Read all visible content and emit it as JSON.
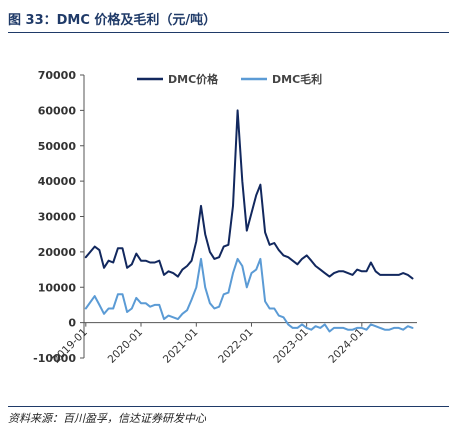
{
  "figure": {
    "title": "图 33：DMC 价格及毛利（元/吨）",
    "source": "资料来源：百川盈孚，信达证券研发中心"
  },
  "colors": {
    "price": "#12285e",
    "margin": "#5b9bd5",
    "axis": "#555555"
  },
  "chart_data": {
    "type": "line",
    "title": "",
    "xlabel": "",
    "ylabel": "",
    "ylim": [
      -10000,
      70000
    ],
    "yticks": [
      -10000,
      0,
      10000,
      20000,
      30000,
      40000,
      50000,
      60000,
      70000
    ],
    "ytick_labels": [
      "-10000",
      "0",
      "10000",
      "20000",
      "30000",
      "40000",
      "50000",
      "60000",
      "70000"
    ],
    "xlim": [
      "2018-12-20",
      "2024-12-31"
    ],
    "xticks": [
      "2019-01",
      "2020-01",
      "2021-01",
      "2022-01",
      "2023-01",
      "2024-01"
    ],
    "xtick_labels": [
      "2019-01",
      "2020-01",
      "2021-01",
      "2022-01",
      "2023-01",
      "2024-01"
    ],
    "legend": {
      "position": "top",
      "entries": [
        "DMC价格",
        "DMC毛利"
      ]
    },
    "grid": false,
    "series": [
      {
        "name": "DMC价格",
        "x": [
          "2019-01",
          "2019-03",
          "2019-04",
          "2019-05",
          "2019-06",
          "2019-07",
          "2019-08",
          "2019-09",
          "2019-10",
          "2019-11",
          "2019-12",
          "2020-01",
          "2020-02",
          "2020-03",
          "2020-04",
          "2020-05",
          "2020-06",
          "2020-07",
          "2020-08",
          "2020-09",
          "2020-10",
          "2020-11",
          "2020-12",
          "2021-01",
          "2021-02",
          "2021-03",
          "2021-04",
          "2021-05",
          "2021-06",
          "2021-07",
          "2021-08",
          "2021-09",
          "2021-10",
          "2021-11",
          "2021-12",
          "2022-01",
          "2022-02",
          "2022-03",
          "2022-04",
          "2022-05",
          "2022-06",
          "2022-07",
          "2022-08",
          "2022-09",
          "2022-10",
          "2022-11",
          "2022-12",
          "2023-01",
          "2023-02",
          "2023-03",
          "2023-04",
          "2023-05",
          "2023-06",
          "2023-07",
          "2023-08",
          "2023-09",
          "2023-10",
          "2023-11",
          "2023-12",
          "2024-01",
          "2024-02",
          "2024-03",
          "2024-04",
          "2024-05",
          "2024-06",
          "2024-07",
          "2024-08",
          "2024-09",
          "2024-10",
          "2024-11",
          "2024-12"
        ],
        "y": [
          18500,
          21500,
          20500,
          15500,
          17500,
          17000,
          21000,
          21000,
          15500,
          16500,
          19500,
          17500,
          17500,
          17000,
          17000,
          17500,
          13500,
          14500,
          14000,
          13000,
          15000,
          16000,
          17500,
          23000,
          33000,
          25000,
          20000,
          18000,
          18500,
          21500,
          22000,
          33000,
          60000,
          40000,
          26000,
          31000,
          36000,
          39000,
          25500,
          22000,
          22500,
          20500,
          19000,
          18500,
          17500,
          16500,
          18000,
          19000,
          17500,
          16000,
          15000,
          14000,
          13000,
          14000,
          14500,
          14500,
          14000,
          13500,
          15000,
          14500,
          14500,
          17000,
          14500,
          13500,
          13500,
          13500,
          13500,
          13500,
          14000,
          13500,
          12500
        ]
      },
      {
        "name": "DMC毛利",
        "x": [
          "2019-01",
          "2019-03",
          "2019-04",
          "2019-05",
          "2019-06",
          "2019-07",
          "2019-08",
          "2019-09",
          "2019-10",
          "2019-11",
          "2019-12",
          "2020-01",
          "2020-02",
          "2020-03",
          "2020-04",
          "2020-05",
          "2020-06",
          "2020-07",
          "2020-08",
          "2020-09",
          "2020-10",
          "2020-11",
          "2020-12",
          "2021-01",
          "2021-02",
          "2021-03",
          "2021-04",
          "2021-05",
          "2021-06",
          "2021-07",
          "2021-08",
          "2021-09",
          "2021-10",
          "2021-11",
          "2021-12",
          "2022-01",
          "2022-02",
          "2022-03",
          "2022-04",
          "2022-05",
          "2022-06",
          "2022-07",
          "2022-08",
          "2022-09",
          "2022-10",
          "2022-11",
          "2022-12",
          "2023-01",
          "2023-02",
          "2023-03",
          "2023-04",
          "2023-05",
          "2023-06",
          "2023-07",
          "2023-08",
          "2023-09",
          "2023-10",
          "2023-11",
          "2023-12",
          "2024-01",
          "2024-02",
          "2024-03",
          "2024-04",
          "2024-05",
          "2024-06",
          "2024-07",
          "2024-08",
          "2024-09",
          "2024-10",
          "2024-11",
          "2024-12"
        ],
        "y": [
          4000,
          7500,
          5000,
          2500,
          4000,
          4000,
          8000,
          8000,
          3000,
          4000,
          7000,
          5500,
          5500,
          4500,
          5000,
          5000,
          1000,
          2000,
          1500,
          1000,
          2500,
          3500,
          6500,
          10000,
          18000,
          10000,
          5500,
          4000,
          4500,
          8000,
          8500,
          14000,
          18000,
          16000,
          10000,
          14000,
          15000,
          18000,
          6000,
          4000,
          4000,
          2000,
          1500,
          -500,
          -1500,
          -1500,
          -500,
          -1500,
          -2000,
          -1000,
          -1500,
          -500,
          -2500,
          -1500,
          -1500,
          -1500,
          -2000,
          -2000,
          -1500,
          -1500,
          -2000,
          -500,
          -1000,
          -1500,
          -2000,
          -2000,
          -1500,
          -1500,
          -2000,
          -1000,
          -1500
        ]
      }
    ]
  }
}
